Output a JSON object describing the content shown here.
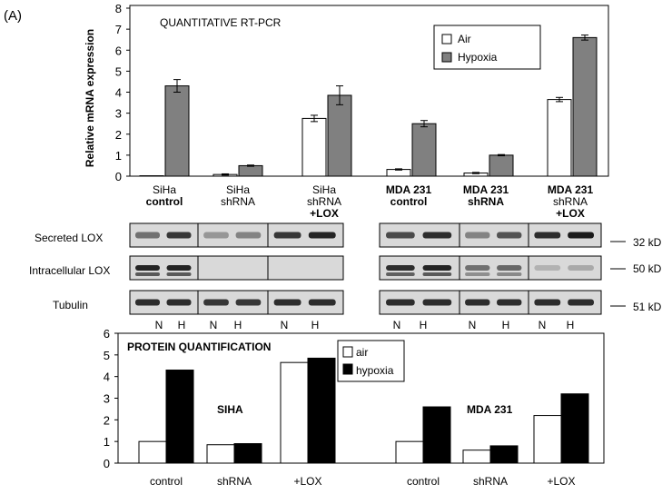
{
  "panel_label": "(A)",
  "colors": {
    "air": "#ffffff",
    "hypoxia": "#808080",
    "hypoxia_protein": "#000000",
    "blot_bg": "#d9d9d9",
    "band": "#1a1a1a"
  },
  "chart_data": [
    {
      "type": "bar",
      "title": "QUANTITATIVE RT-PCR",
      "ylabel": "Relative mRNA expression",
      "xlabel": "",
      "ylim": [
        0,
        8
      ],
      "yticks": [
        "0",
        "1",
        "2",
        "3",
        "4",
        "5",
        "6",
        "7",
        "8"
      ],
      "legend_position": "top-right",
      "categories": [
        {
          "line1": "SiHa",
          "line2": "control",
          "line3": ""
        },
        {
          "line1": "SiHa",
          "line2": "shRNA",
          "line3": ""
        },
        {
          "line1": "SiHa",
          "line2": "shRNA",
          "line3": "+LOX"
        },
        {
          "line1": "MDA 231",
          "line2": "control",
          "line3": ""
        },
        {
          "line1": "MDA 231",
          "line2": "shRNA",
          "line3": ""
        },
        {
          "line1": "MDA 231",
          "line2": "shRNA",
          "line3": "+LOX"
        }
      ],
      "series": [
        {
          "name": "Air",
          "values": [
            0.02,
            0.08,
            2.75,
            0.32,
            0.15,
            3.65
          ],
          "errors": [
            0,
            0.03,
            0.15,
            0.03,
            0.03,
            0.1
          ]
        },
        {
          "name": "Hypoxia",
          "values": [
            4.3,
            0.5,
            3.85,
            2.5,
            1.0,
            6.6
          ],
          "errors": [
            0.3,
            0.03,
            0.45,
            0.15,
            0.03,
            0.12
          ]
        }
      ]
    },
    {
      "type": "bar",
      "title": "PROTEIN QUANTIFICATION",
      "ylabel": "",
      "xlabel": "",
      "ylim": [
        0,
        6
      ],
      "yticks": [
        "0",
        "1",
        "2",
        "3",
        "4",
        "5",
        "6"
      ],
      "legend_position": "top-center",
      "group_labels": [
        "SIHA",
        "MDA 231"
      ],
      "categories": [
        "control",
        "shRNA",
        "+LOX",
        "control",
        "shRNA",
        "+LOX"
      ],
      "series": [
        {
          "name": "air",
          "values": [
            1.0,
            0.85,
            4.65,
            1.0,
            0.6,
            2.2
          ]
        },
        {
          "name": "hypoxia",
          "values": [
            4.3,
            0.9,
            4.85,
            2.6,
            0.8,
            3.2
          ]
        }
      ]
    }
  ],
  "blots": {
    "row_labels": [
      "Secreted LOX",
      "Intracellular LOX",
      "Tubulin"
    ],
    "sizes": [
      "32 kD",
      "50 kD",
      "51 kD"
    ],
    "lane_labels": [
      "N",
      "H",
      "N",
      "H",
      "N",
      "H",
      "N",
      "H",
      "N",
      "H",
      "N",
      "H"
    ]
  }
}
